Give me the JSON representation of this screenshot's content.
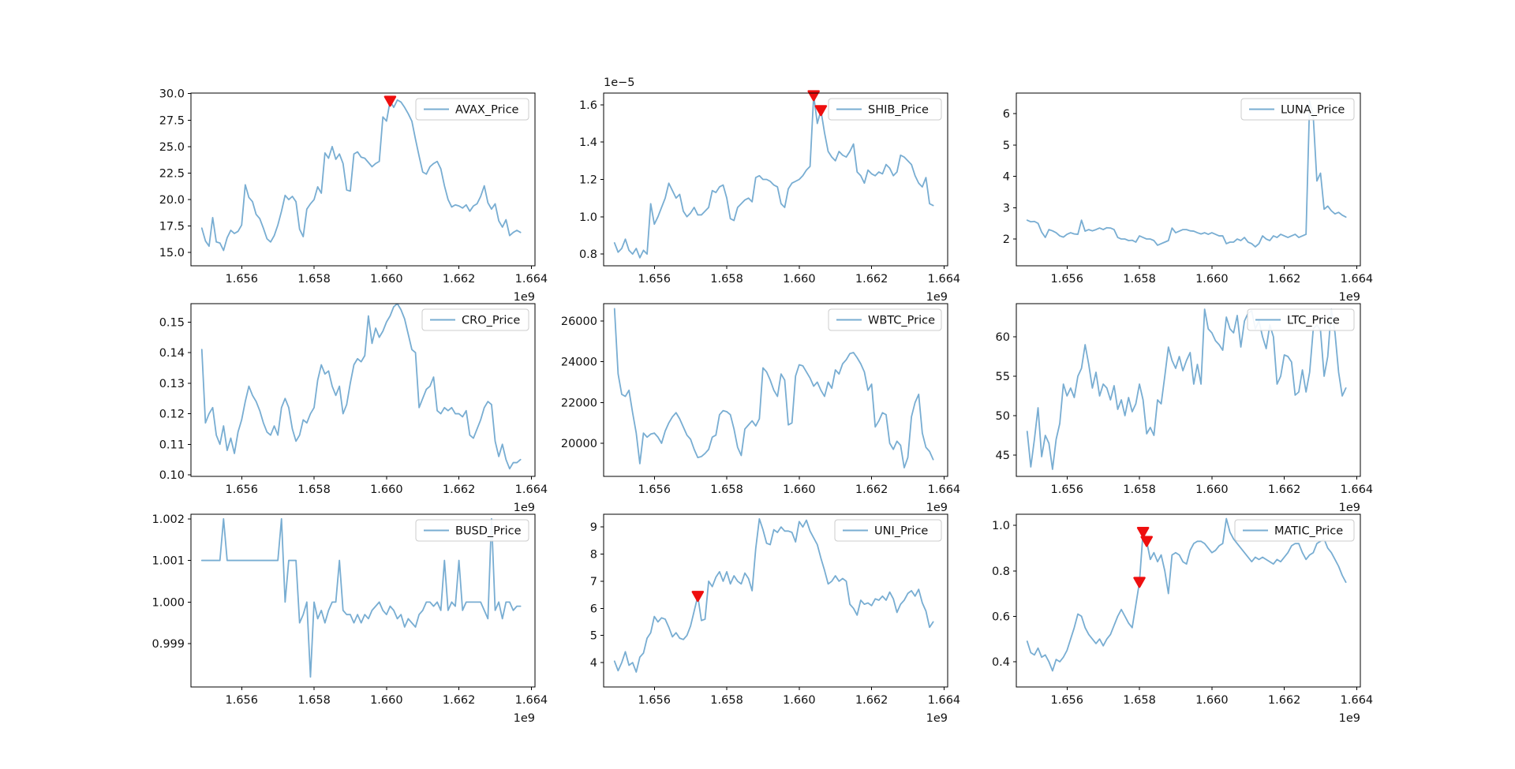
{
  "figure": {
    "background": "#ffffff",
    "line_color": "#78add2",
    "marker_color": "#ee0f0f",
    "spine_color": "#000000",
    "legend_border_color": "#cccccc",
    "x_axis": {
      "xlim": [
        1.6546,
        1.6641
      ],
      "ticks": [
        1.656,
        1.658,
        1.66,
        1.662,
        1.664
      ],
      "tick_labels": [
        "1.656",
        "1.658",
        "1.660",
        "1.662",
        "1.664"
      ],
      "offset_label": "1e9",
      "x_start": 1.6549,
      "x_end": 1.6637
    }
  },
  "chart_data": [
    {
      "type": "line",
      "name": "AVAX_Price",
      "legend_label": "AVAX_Price",
      "ylim": [
        13.75,
        30.05
      ],
      "yticks": [
        15.0,
        17.5,
        20.0,
        22.5,
        25.0,
        27.5,
        30.0
      ],
      "ytick_labels": [
        "15.0",
        "17.5",
        "20.0",
        "22.5",
        "25.0",
        "27.5",
        "30.0"
      ],
      "y_offset_label": "",
      "values": [
        17.3,
        16.1,
        15.6,
        18.3,
        16.0,
        15.9,
        15.2,
        16.4,
        17.1,
        16.8,
        17.0,
        17.6,
        21.4,
        20.2,
        19.8,
        18.6,
        18.2,
        17.3,
        16.3,
        16.0,
        16.6,
        17.6,
        18.9,
        20.4,
        20.0,
        20.3,
        19.8,
        17.2,
        16.5,
        19.1,
        19.6,
        20.0,
        21.2,
        20.6,
        24.4,
        23.9,
        25.0,
        23.8,
        24.3,
        23.4,
        20.9,
        20.8,
        24.3,
        24.5,
        24.0,
        23.9,
        23.5,
        23.1,
        23.4,
        23.6,
        27.8,
        27.4,
        29.3,
        28.7,
        29.4,
        29.2,
        28.7,
        28.1,
        27.4,
        25.7,
        24.1,
        22.6,
        22.4,
        23.1,
        23.4,
        23.6,
        22.9,
        21.3,
        20.0,
        19.3,
        19.5,
        19.4,
        19.2,
        19.5,
        18.9,
        19.4,
        19.6,
        20.3,
        21.3,
        19.7,
        19.1,
        19.6,
        18.0,
        17.4,
        18.1,
        16.6,
        16.9,
        17.1,
        16.9
      ],
      "markers": [
        [
          1.6601,
          29.3
        ]
      ]
    },
    {
      "type": "line",
      "name": "SHIB_Price",
      "legend_label": "SHIB_Price",
      "ylim": [
        0.737,
        1.663
      ],
      "yticks": [
        0.8,
        1.0,
        1.2,
        1.4,
        1.6
      ],
      "ytick_labels": [
        "0.8",
        "1.0",
        "1.2",
        "1.4",
        "1.6"
      ],
      "y_offset_label": "1e−5",
      "values": [
        0.86,
        0.81,
        0.83,
        0.88,
        0.82,
        0.8,
        0.83,
        0.78,
        0.82,
        0.8,
        1.07,
        0.96,
        1.0,
        1.05,
        1.1,
        1.18,
        1.14,
        1.1,
        1.12,
        1.03,
        1.0,
        1.02,
        1.05,
        1.01,
        1.01,
        1.03,
        1.05,
        1.14,
        1.13,
        1.16,
        1.17,
        1.1,
        0.99,
        0.98,
        1.05,
        1.07,
        1.09,
        1.1,
        1.08,
        1.21,
        1.22,
        1.2,
        1.2,
        1.19,
        1.17,
        1.16,
        1.07,
        1.05,
        1.15,
        1.18,
        1.19,
        1.2,
        1.22,
        1.25,
        1.27,
        1.65,
        1.5,
        1.57,
        1.45,
        1.35,
        1.32,
        1.3,
        1.35,
        1.33,
        1.32,
        1.35,
        1.39,
        1.24,
        1.22,
        1.18,
        1.25,
        1.23,
        1.22,
        1.24,
        1.23,
        1.28,
        1.26,
        1.22,
        1.24,
        1.33,
        1.32,
        1.3,
        1.28,
        1.22,
        1.18,
        1.16,
        1.21,
        1.07,
        1.06
      ],
      "markers": [
        [
          1.6604,
          1.65
        ],
        [
          1.6606,
          1.57
        ]
      ]
    },
    {
      "type": "line",
      "name": "LUNA_Price",
      "legend_label": "LUNA_Price",
      "ylim": [
        1.145,
        6.655
      ],
      "yticks": [
        2,
        3,
        4,
        5,
        6
      ],
      "ytick_labels": [
        "2",
        "3",
        "4",
        "5",
        "6"
      ],
      "y_offset_label": "",
      "values": [
        2.6,
        2.55,
        2.56,
        2.5,
        2.22,
        2.05,
        2.3,
        2.26,
        2.2,
        2.1,
        2.06,
        2.15,
        2.2,
        2.16,
        2.15,
        2.6,
        2.25,
        2.3,
        2.26,
        2.3,
        2.35,
        2.3,
        2.36,
        2.35,
        2.3,
        2.05,
        2.0,
        2.0,
        1.95,
        1.96,
        1.9,
        2.1,
        2.05,
        2.0,
        2.0,
        1.95,
        1.8,
        1.85,
        1.9,
        1.95,
        2.35,
        2.2,
        2.25,
        2.3,
        2.3,
        2.26,
        2.25,
        2.2,
        2.16,
        2.2,
        2.15,
        2.2,
        2.15,
        2.1,
        2.1,
        1.85,
        1.9,
        1.9,
        2.0,
        1.95,
        2.05,
        1.9,
        1.85,
        1.75,
        1.85,
        2.1,
        2.0,
        1.95,
        2.1,
        2.05,
        2.15,
        2.1,
        2.05,
        2.1,
        2.15,
        2.05,
        2.1,
        2.15,
        6.4,
        5.9,
        3.85,
        4.1,
        2.95,
        3.05,
        2.9,
        2.8,
        2.85,
        2.76,
        2.7
      ],
      "markers": []
    },
    {
      "type": "line",
      "name": "CRO_Price",
      "legend_label": "CRO_Price",
      "ylim": [
        0.0995,
        0.156
      ],
      "yticks": [
        0.1,
        0.11,
        0.12,
        0.13,
        0.14,
        0.15
      ],
      "ytick_labels": [
        "0.10",
        "0.11",
        "0.12",
        "0.13",
        "0.14",
        "0.15"
      ],
      "y_offset_label": "",
      "values": [
        0.141,
        0.117,
        0.12,
        0.122,
        0.113,
        0.11,
        0.116,
        0.108,
        0.112,
        0.107,
        0.114,
        0.118,
        0.124,
        0.129,
        0.126,
        0.124,
        0.121,
        0.117,
        0.114,
        0.113,
        0.116,
        0.113,
        0.122,
        0.125,
        0.122,
        0.115,
        0.111,
        0.113,
        0.118,
        0.117,
        0.12,
        0.122,
        0.131,
        0.136,
        0.133,
        0.134,
        0.129,
        0.126,
        0.129,
        0.12,
        0.123,
        0.13,
        0.136,
        0.138,
        0.137,
        0.139,
        0.152,
        0.143,
        0.148,
        0.145,
        0.147,
        0.15,
        0.152,
        0.155,
        0.156,
        0.154,
        0.151,
        0.146,
        0.141,
        0.14,
        0.122,
        0.125,
        0.128,
        0.129,
        0.132,
        0.121,
        0.12,
        0.122,
        0.121,
        0.122,
        0.12,
        0.12,
        0.119,
        0.121,
        0.113,
        0.112,
        0.115,
        0.118,
        0.122,
        0.124,
        0.123,
        0.111,
        0.106,
        0.11,
        0.105,
        0.102,
        0.104,
        0.104,
        0.105
      ],
      "markers": []
    },
    {
      "type": "line",
      "name": "WBTC_Price",
      "legend_label": "WBTC_Price",
      "ylim": [
        18375,
        26850
      ],
      "yticks": [
        20000,
        22000,
        24000,
        26000
      ],
      "ytick_labels": [
        "20000",
        "22000",
        "24000",
        "26000"
      ],
      "y_offset_label": "",
      "values": [
        26600,
        23400,
        22400,
        22300,
        22600,
        21500,
        20500,
        19000,
        20500,
        20300,
        20450,
        20500,
        20300,
        20000,
        20600,
        21000,
        21300,
        21500,
        21200,
        20800,
        20400,
        20200,
        19700,
        19300,
        19350,
        19500,
        19700,
        20300,
        20400,
        21400,
        21600,
        21550,
        21400,
        20700,
        19800,
        19400,
        20700,
        20900,
        21100,
        20850,
        21200,
        23700,
        23500,
        23100,
        22600,
        22300,
        23400,
        23100,
        20900,
        21000,
        23300,
        23850,
        23800,
        23500,
        23200,
        22800,
        23000,
        22600,
        22300,
        23000,
        22700,
        23600,
        23400,
        23900,
        24100,
        24400,
        24450,
        24200,
        23900,
        23500,
        22600,
        22900,
        20800,
        21100,
        21500,
        21400,
        20000,
        19700,
        20100,
        19900,
        18800,
        19300,
        21300,
        22000,
        22400,
        20500,
        19800,
        19600,
        19200
      ],
      "markers": []
    },
    {
      "type": "line",
      "name": "LTC_Price",
      "legend_label": "LTC_Price",
      "ylim": [
        42.3,
        64.2
      ],
      "yticks": [
        45,
        50,
        55,
        60
      ],
      "ytick_labels": [
        "45",
        "50",
        "55",
        "60"
      ],
      "y_offset_label": "",
      "values": [
        48,
        43.5,
        47,
        51,
        44.8,
        47.5,
        46.5,
        43.2,
        47,
        49,
        54,
        52.5,
        53.5,
        52.3,
        55,
        56,
        59,
        56.5,
        53.5,
        55.5,
        52.5,
        54,
        53.5,
        52,
        53.8,
        50.8,
        52,
        50,
        52.3,
        50.5,
        51.5,
        54,
        52,
        47.7,
        48.5,
        47.5,
        52,
        51.5,
        55,
        58.7,
        57,
        56,
        57.5,
        55.7,
        57,
        58,
        54,
        56.5,
        54,
        63.5,
        61,
        60.5,
        59.5,
        59,
        58.3,
        62.5,
        61,
        60.5,
        62.7,
        58.7,
        62,
        63,
        63.3,
        61,
        62,
        60,
        58.5,
        61.5,
        60,
        54,
        55,
        57.7,
        57.5,
        56.8,
        52.6,
        53,
        55.8,
        53,
        55.5,
        61,
        61.5,
        60.8,
        55,
        57.5,
        63.5,
        60.5,
        55.5,
        52.5,
        53.5
      ],
      "markers": []
    },
    {
      "type": "line",
      "name": "BUSD_Price",
      "legend_label": "BUSD_Price",
      "ylim": [
        0.99796,
        1.00211
      ],
      "yticks": [
        0.999,
        1.0,
        1.001,
        1.002
      ],
      "ytick_labels": [
        "0.999",
        "1.000",
        "1.001",
        "1.002"
      ],
      "y_offset_label": "",
      "values": [
        1.001,
        1.001,
        1.001,
        1.001,
        1.001,
        1.001,
        1.002,
        1.001,
        1.001,
        1.001,
        1.001,
        1.001,
        1.001,
        1.001,
        1.001,
        1.001,
        1.001,
        1.001,
        1.001,
        1.001,
        1.001,
        1.001,
        1.002,
        1.0,
        1.001,
        1.001,
        1.001,
        0.9995,
        0.9997,
        1.0,
        0.9982,
        1.0,
        0.9996,
        0.9998,
        0.9995,
        0.9998,
        1.0,
        1.0,
        1.001,
        0.9998,
        0.9997,
        0.9997,
        0.9995,
        0.9997,
        0.9995,
        0.9997,
        0.9996,
        0.9998,
        0.9999,
        1.0,
        0.9998,
        0.9997,
        0.9999,
        0.9998,
        0.9996,
        0.9997,
        0.9994,
        0.9996,
        0.9995,
        0.9994,
        0.9997,
        0.9998,
        1.0,
        1.0,
        0.9999,
        1.0,
        0.9998,
        1.001,
        0.9998,
        1.0,
        0.9999,
        1.001,
        0.9998,
        1.0,
        1.0,
        1.0,
        1.0,
        1.0,
        0.9998,
        0.9996,
        1.002,
        0.9998,
        1.0,
        0.9996,
        1.0,
        1.0,
        0.9998,
        0.9999,
        0.9999
      ],
      "markers": []
    },
    {
      "type": "line",
      "name": "UNI_Price",
      "legend_label": "UNI_Price",
      "ylim": [
        3.1,
        9.47
      ],
      "yticks": [
        4,
        5,
        6,
        7,
        8,
        9
      ],
      "ytick_labels": [
        "4",
        "5",
        "6",
        "7",
        "8",
        "9"
      ],
      "y_offset_label": "",
      "values": [
        4.05,
        3.7,
        4.0,
        4.4,
        3.9,
        4.0,
        3.65,
        4.2,
        4.35,
        4.9,
        5.1,
        5.7,
        5.5,
        5.65,
        5.6,
        5.3,
        4.95,
        5.1,
        4.9,
        4.85,
        5.0,
        5.35,
        5.9,
        6.45,
        5.55,
        5.6,
        7.0,
        6.8,
        7.15,
        7.35,
        7.0,
        7.35,
        6.9,
        7.2,
        7.0,
        6.9,
        7.3,
        7.1,
        6.65,
        8.2,
        9.3,
        8.9,
        8.4,
        8.35,
        8.9,
        8.8,
        9.0,
        8.85,
        8.85,
        8.8,
        8.45,
        9.2,
        9.0,
        9.25,
        8.85,
        8.6,
        8.35,
        7.85,
        7.4,
        6.9,
        7.0,
        7.2,
        7.0,
        7.1,
        7.0,
        6.15,
        6.0,
        5.75,
        6.3,
        6.15,
        6.2,
        6.1,
        6.35,
        6.3,
        6.45,
        6.3,
        6.6,
        6.35,
        5.85,
        6.15,
        6.3,
        6.55,
        6.65,
        6.45,
        6.7,
        6.2,
        5.9,
        5.3,
        5.5
      ],
      "markers": [
        [
          1.6572,
          6.45
        ]
      ]
    },
    {
      "type": "line",
      "name": "MATIC_Price",
      "legend_label": "MATIC_Price",
      "ylim": [
        0.289,
        1.049
      ],
      "yticks": [
        0.4,
        0.6,
        0.8,
        1.0
      ],
      "ytick_labels": [
        "0.4",
        "0.6",
        "0.8",
        "1.0"
      ],
      "y_offset_label": "",
      "values": [
        0.49,
        0.44,
        0.43,
        0.46,
        0.42,
        0.43,
        0.4,
        0.36,
        0.41,
        0.4,
        0.42,
        0.45,
        0.5,
        0.55,
        0.61,
        0.6,
        0.55,
        0.52,
        0.5,
        0.48,
        0.5,
        0.47,
        0.5,
        0.52,
        0.56,
        0.6,
        0.63,
        0.6,
        0.57,
        0.55,
        0.65,
        0.75,
        0.97,
        0.93,
        0.85,
        0.88,
        0.84,
        0.87,
        0.8,
        0.7,
        0.87,
        0.88,
        0.87,
        0.84,
        0.83,
        0.89,
        0.92,
        0.93,
        0.93,
        0.92,
        0.9,
        0.88,
        0.89,
        0.91,
        0.92,
        1.03,
        0.97,
        0.94,
        0.92,
        0.9,
        0.88,
        0.86,
        0.84,
        0.86,
        0.85,
        0.86,
        0.85,
        0.84,
        0.83,
        0.85,
        0.84,
        0.86,
        0.88,
        0.91,
        0.92,
        0.92,
        0.88,
        0.85,
        0.87,
        0.88,
        0.92,
        0.93,
        0.94,
        0.9,
        0.88,
        0.85,
        0.82,
        0.78,
        0.75
      ],
      "markers": [
        [
          1.658,
          0.75
        ],
        [
          1.6581,
          0.97
        ],
        [
          1.6582,
          0.93
        ]
      ]
    }
  ]
}
